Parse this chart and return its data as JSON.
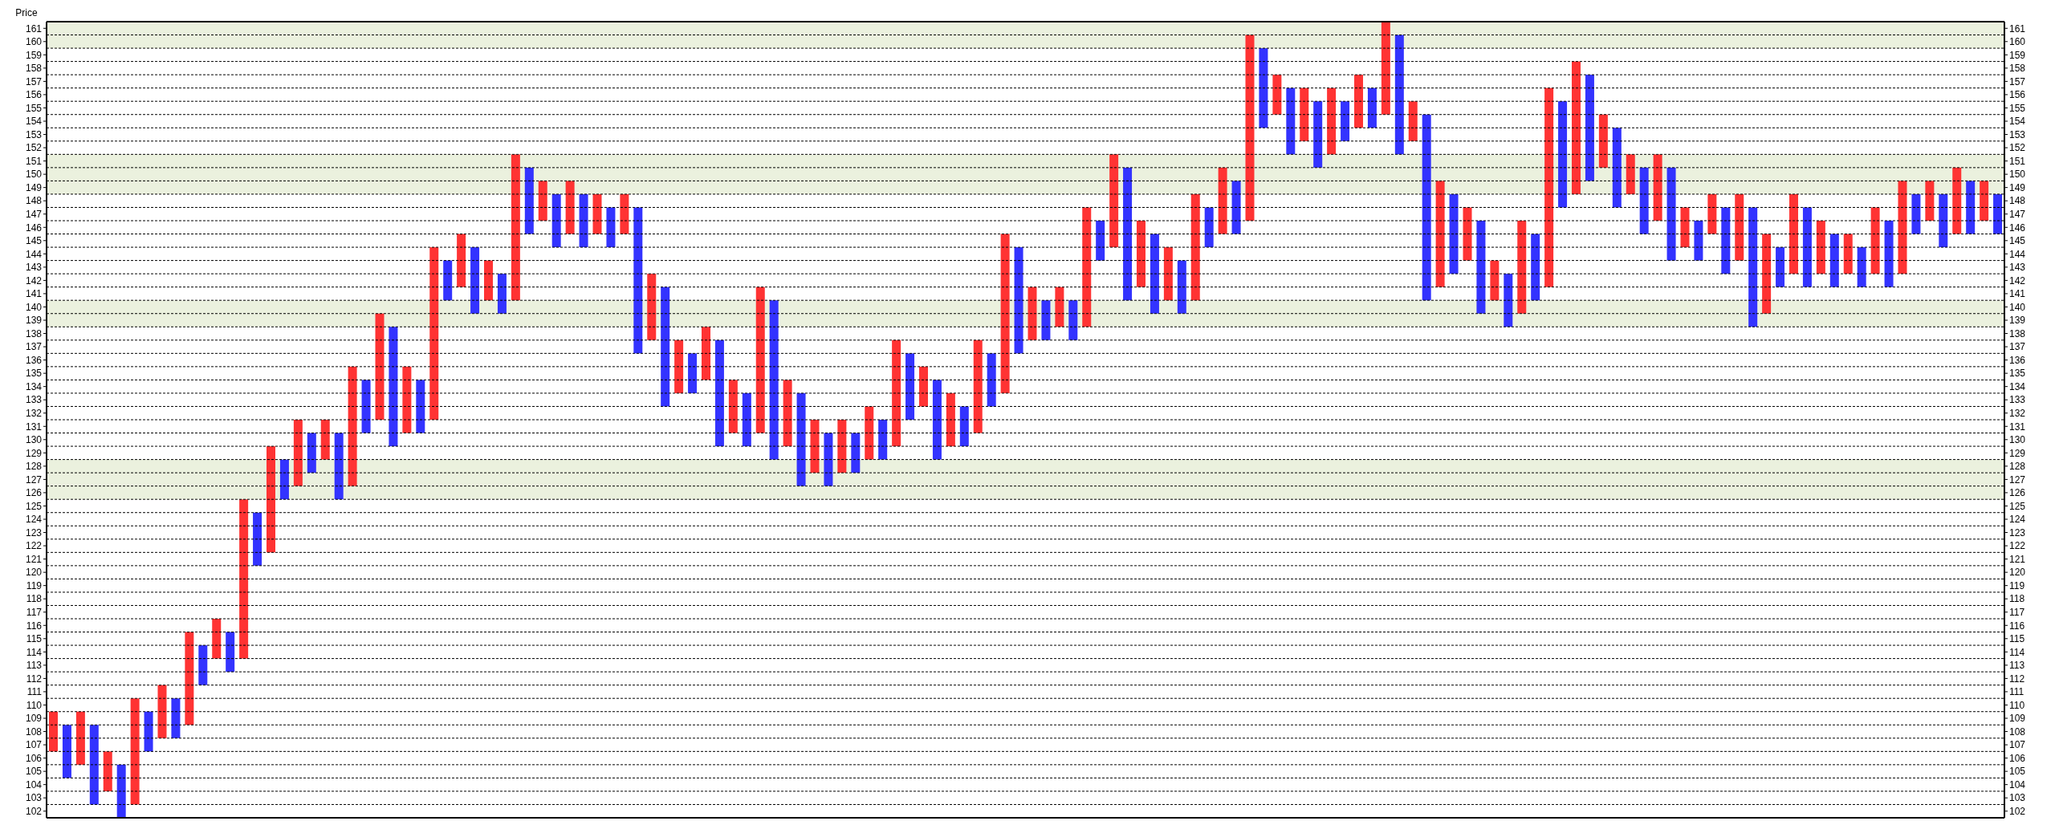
{
  "chart_data": {
    "type": "bar",
    "ylabel": "Price",
    "categories": [
      null,
      null,
      null,
      null,
      null,
      null,
      null,
      null,
      null,
      null,
      null,
      null,
      null,
      null,
      null,
      null,
      null,
      null,
      null,
      null,
      null,
      null,
      null,
      null,
      null,
      null,
      null,
      null,
      null,
      null,
      null,
      null,
      null,
      null,
      null,
      null,
      null,
      null,
      null,
      null,
      null,
      null,
      null,
      null,
      null,
      null,
      null,
      null,
      null,
      null,
      null,
      null,
      null,
      null,
      null,
      null,
      null,
      null,
      null,
      null,
      null,
      null,
      null,
      null,
      null,
      null,
      null,
      null,
      null,
      null,
      null,
      null,
      null,
      null,
      null,
      null,
      null,
      null,
      null,
      null,
      null,
      null,
      null,
      null,
      null,
      null,
      null,
      null,
      null,
      null,
      null,
      null,
      null,
      null,
      null,
      null,
      null,
      null,
      null,
      null,
      null,
      null,
      null,
      null,
      null,
      null,
      null,
      null,
      null,
      null,
      null,
      null,
      null,
      null,
      null,
      null,
      null,
      null,
      null,
      null,
      null,
      null,
      null,
      null,
      null,
      null,
      null,
      null,
      null,
      null,
      null,
      null,
      null,
      null,
      null,
      null,
      null,
      null,
      null,
      null,
      null,
      null,
      null,
      null
    ],
    "ylim": [
      101.5,
      161.5
    ],
    "yticks": [
      102,
      103,
      104,
      105,
      106,
      107,
      108,
      109,
      110,
      111,
      112,
      113,
      114,
      115,
      116,
      117,
      118,
      119,
      120,
      121,
      122,
      123,
      124,
      125,
      126,
      127,
      128,
      129,
      130,
      131,
      132,
      133,
      134,
      135,
      136,
      137,
      138,
      139,
      140,
      141,
      142,
      143,
      144,
      145,
      146,
      147,
      148,
      149,
      150,
      151,
      152,
      153,
      154,
      155,
      156,
      157,
      158,
      159,
      160,
      161
    ],
    "y2lim": [
      101.5,
      161.5
    ],
    "y2ticks": [
      102,
      103,
      104,
      105,
      106,
      107,
      108,
      109,
      110,
      111,
      112,
      113,
      114,
      115,
      116,
      117,
      118,
      119,
      120,
      121,
      122,
      123,
      124,
      125,
      126,
      127,
      128,
      129,
      130,
      131,
      132,
      133,
      134,
      135,
      136,
      137,
      138,
      139,
      140,
      141,
      142,
      143,
      144,
      145,
      146,
      147,
      148,
      149,
      150,
      151,
      152,
      153,
      154,
      155,
      156,
      157,
      158,
      159,
      160,
      161
    ],
    "tick_labels": "y",
    "grid": "y",
    "bands": [
      {
        "axis": "y",
        "from": 125.5,
        "to": 128.5,
        "color": "#ebf1de"
      },
      {
        "axis": "y",
        "from": 138.5,
        "to": 140.5,
        "color": "#ebf1de"
      },
      {
        "axis": "y",
        "from": 148.5,
        "to": 151.5,
        "color": "#ebf1de"
      },
      {
        "axis": "y",
        "from": 159.5,
        "to": 161.5,
        "color": "#ebf1de"
      }
    ],
    "series": [
      {
        "color": "#ff3333",
        "values": [
          3,
          null,
          4,
          null,
          3,
          null,
          8,
          null,
          4,
          null,
          7,
          null,
          3,
          null,
          12,
          null,
          8,
          null,
          5,
          null,
          3,
          null,
          9,
          null,
          8,
          null,
          5,
          null,
          13,
          null,
          4,
          null,
          3,
          null,
          11,
          null,
          3,
          null,
          4,
          null,
          3,
          null,
          3,
          null,
          5,
          null,
          4,
          null,
          4,
          null,
          4,
          null,
          11,
          null,
          5,
          null,
          4,
          null,
          4,
          null,
          4,
          null,
          8,
          null,
          3,
          null,
          4,
          null,
          7,
          null,
          12,
          null,
          4,
          null,
          3,
          null,
          9,
          null,
          7,
          null,
          5,
          null,
          4,
          null,
          8,
          null,
          5,
          null,
          14,
          null,
          3,
          null,
          4,
          null,
          5,
          null,
          4,
          null,
          7,
          null,
          3,
          null,
          8,
          null,
          4,
          null,
          3,
          null,
          7,
          null,
          15,
          null,
          10,
          null,
          4,
          null,
          3,
          null,
          5,
          null,
          3,
          null,
          3,
          null,
          5,
          null,
          6,
          null,
          6,
          null,
          4,
          null,
          3,
          null,
          5,
          null,
          7,
          null,
          3,
          null,
          5,
          null,
          3,
          null
        ],
        "base": [
          106.5,
          null,
          105.5,
          null,
          103.5,
          null,
          102.5,
          null,
          107.5,
          null,
          108.5,
          null,
          113.5,
          null,
          113.5,
          null,
          121.5,
          null,
          126.5,
          null,
          128.5,
          null,
          126.5,
          null,
          131.5,
          null,
          130.5,
          null,
          131.5,
          null,
          141.5,
          null,
          140.5,
          null,
          140.5,
          null,
          146.5,
          null,
          145.5,
          null,
          145.5,
          null,
          145.5,
          null,
          137.5,
          null,
          133.5,
          null,
          134.5,
          null,
          130.5,
          null,
          130.5,
          null,
          129.5,
          null,
          127.5,
          null,
          127.5,
          null,
          128.5,
          null,
          129.5,
          null,
          132.5,
          null,
          129.5,
          null,
          130.5,
          null,
          133.5,
          null,
          137.5,
          null,
          138.5,
          null,
          138.5,
          null,
          144.5,
          null,
          141.5,
          null,
          140.5,
          null,
          140.5,
          null,
          145.5,
          null,
          146.5,
          null,
          154.5,
          null,
          152.5,
          null,
          151.5,
          null,
          153.5,
          null,
          154.5,
          null,
          152.5,
          null,
          141.5,
          null,
          143.5,
          null,
          140.5,
          null,
          139.5,
          null,
          141.5,
          null,
          148.5,
          null,
          150.5,
          null,
          148.5,
          null,
          146.5,
          null,
          144.5,
          null,
          145.5,
          null,
          143.5,
          null,
          139.5,
          null,
          142.5,
          null,
          142.5,
          null,
          142.5,
          null,
          142.5,
          null,
          142.5,
          null,
          146.5,
          null,
          145.5,
          null,
          146.5,
          null
        ]
      },
      {
        "color": "#3333ff",
        "values": [
          null,
          4,
          null,
          6,
          null,
          4,
          null,
          3,
          null,
          3,
          null,
          3,
          null,
          3,
          null,
          4,
          null,
          3,
          null,
          3,
          null,
          5,
          null,
          4,
          null,
          9,
          null,
          4,
          null,
          3,
          null,
          5,
          null,
          3,
          null,
          5,
          null,
          4,
          null,
          4,
          null,
          3,
          null,
          11,
          null,
          9,
          null,
          3,
          null,
          8,
          null,
          4,
          null,
          12,
          null,
          7,
          null,
          4,
          null,
          3,
          null,
          3,
          null,
          5,
          null,
          6,
          null,
          3,
          null,
          4,
          null,
          8,
          null,
          3,
          null,
          3,
          null,
          3,
          null,
          10,
          null,
          6,
          null,
          4,
          null,
          3,
          null,
          4,
          null,
          6,
          null,
          5,
          null,
          5,
          null,
          3,
          null,
          3,
          null,
          9,
          null,
          14,
          null,
          6,
          null,
          7,
          null,
          4,
          null,
          5,
          null,
          8,
          null,
          8,
          null,
          6,
          null,
          5,
          null,
          7,
          null,
          3,
          null,
          5,
          null,
          9,
          null,
          3,
          null,
          6,
          null,
          4,
          null,
          3,
          null,
          5,
          null,
          3,
          null,
          4,
          null,
          4,
          null,
          3
        ],
        "base": [
          null,
          104.5,
          null,
          102.5,
          null,
          101.5,
          null,
          106.5,
          null,
          107.5,
          null,
          111.5,
          null,
          112.5,
          null,
          120.5,
          null,
          125.5,
          null,
          127.5,
          null,
          125.5,
          null,
          130.5,
          null,
          129.5,
          null,
          130.5,
          null,
          140.5,
          null,
          139.5,
          null,
          139.5,
          null,
          145.5,
          null,
          144.5,
          null,
          144.5,
          null,
          144.5,
          null,
          136.5,
          null,
          132.5,
          null,
          133.5,
          null,
          129.5,
          null,
          129.5,
          null,
          128.5,
          null,
          126.5,
          null,
          126.5,
          null,
          127.5,
          null,
          128.5,
          null,
          131.5,
          null,
          128.5,
          null,
          129.5,
          null,
          132.5,
          null,
          136.5,
          null,
          137.5,
          null,
          137.5,
          null,
          143.5,
          null,
          140.5,
          null,
          139.5,
          null,
          139.5,
          null,
          144.5,
          null,
          145.5,
          null,
          153.5,
          null,
          151.5,
          null,
          150.5,
          null,
          152.5,
          null,
          153.5,
          null,
          151.5,
          null,
          140.5,
          null,
          142.5,
          null,
          139.5,
          null,
          138.5,
          null,
          140.5,
          null,
          147.5,
          null,
          149.5,
          null,
          147.5,
          null,
          145.5,
          null,
          143.5,
          null,
          143.5,
          null,
          142.5,
          null,
          138.5,
          null,
          141.5,
          null,
          141.5,
          null,
          141.5,
          null,
          141.5,
          null,
          141.5,
          null,
          145.5,
          null,
          144.5,
          null,
          145.5,
          null,
          145.5
        ]
      }
    ]
  }
}
